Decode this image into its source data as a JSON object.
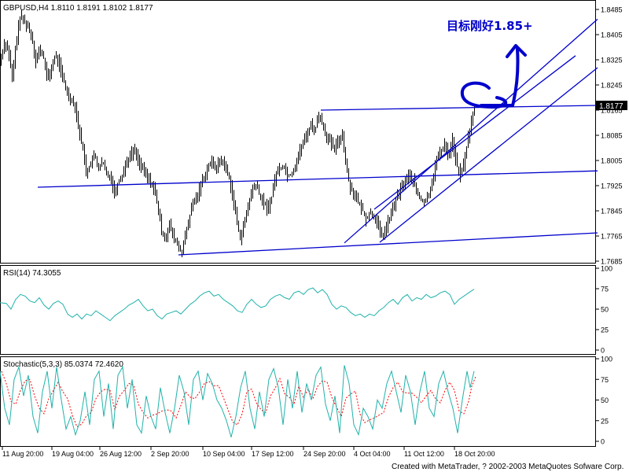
{
  "colors": {
    "background": "#ffffff",
    "frame": "#000000",
    "candles": "#000000",
    "trendlines": "#0000cc",
    "rsi_line": "#20b2aa",
    "stoch_main": "#20b2aa",
    "stoch_signal": "#ff0000",
    "annotation": "#0000cc",
    "price_label_bg": "#000000",
    "price_label_fg": "#ffffff"
  },
  "icons": [
    "hand-drawn-arrow-icon",
    "hand-drawn-circle-icon"
  ],
  "chart_data": {
    "type": "line",
    "price_panel": {
      "header": "GBPUSD,H4  1.8110 1.8191 1.8102 1.8177",
      "symbol": "GBPUSD",
      "timeframe": "H4",
      "ohlc": {
        "open": 1.811,
        "high": 1.8191,
        "low": 1.8102,
        "close": 1.8177
      },
      "current_price_label": "1.8177",
      "ylim": [
        1.7685,
        1.8485
      ],
      "y_ticks": [
        "1.8485",
        "1.8405",
        "1.8325",
        "1.8245",
        "1.8165",
        "1.8085",
        "1.8005",
        "1.7925",
        "1.7845",
        "1.7765",
        "1.7685"
      ],
      "annotation": "目标刚好1.85+",
      "close_path": [
        [
          0,
          1.832
        ],
        [
          5,
          1.838
        ],
        [
          10,
          1.836
        ],
        [
          15,
          1.826
        ],
        [
          20,
          1.838
        ],
        [
          25,
          1.846
        ],
        [
          30,
          1.845
        ],
        [
          35,
          1.843
        ],
        [
          40,
          1.84
        ],
        [
          45,
          1.832
        ],
        [
          50,
          1.836
        ],
        [
          55,
          1.833
        ],
        [
          60,
          1.826
        ],
        [
          65,
          1.83
        ],
        [
          70,
          1.834
        ],
        [
          75,
          1.831
        ],
        [
          80,
          1.826
        ],
        [
          85,
          1.822
        ],
        [
          90,
          1.82
        ],
        [
          95,
          1.818
        ],
        [
          100,
          1.81
        ],
        [
          105,
          1.804
        ],
        [
          110,
          1.796
        ],
        [
          115,
          1.8
        ],
        [
          120,
          1.802
        ],
        [
          125,
          1.798
        ],
        [
          130,
          1.8
        ],
        [
          135,
          1.796
        ],
        [
          140,
          1.796
        ],
        [
          145,
          1.79
        ],
        [
          150,
          1.794
        ],
        [
          155,
          1.796
        ],
        [
          160,
          1.8
        ],
        [
          165,
          1.802
        ],
        [
          170,
          1.804
        ],
        [
          175,
          1.801
        ],
        [
          180,
          1.798
        ],
        [
          185,
          1.796
        ],
        [
          190,
          1.794
        ],
        [
          195,
          1.792
        ],
        [
          200,
          1.786
        ],
        [
          205,
          1.778
        ],
        [
          210,
          1.776
        ],
        [
          215,
          1.78
        ],
        [
          220,
          1.776
        ],
        [
          225,
          1.774
        ],
        [
          230,
          1.771
        ],
        [
          235,
          1.776
        ],
        [
          240,
          1.782
        ],
        [
          245,
          1.787
        ],
        [
          250,
          1.789
        ],
        [
          255,
          1.793
        ],
        [
          260,
          1.796
        ],
        [
          265,
          1.799
        ],
        [
          270,
          1.8
        ],
        [
          275,
          1.798
        ],
        [
          280,
          1.801
        ],
        [
          285,
          1.799
        ],
        [
          290,
          1.796
        ],
        [
          295,
          1.79
        ],
        [
          300,
          1.782
        ],
        [
          305,
          1.776
        ],
        [
          310,
          1.78
        ],
        [
          315,
          1.786
        ],
        [
          320,
          1.791
        ],
        [
          325,
          1.793
        ],
        [
          330,
          1.789
        ],
        [
          335,
          1.787
        ],
        [
          340,
          1.785
        ],
        [
          345,
          1.789
        ],
        [
          350,
          1.796
        ],
        [
          355,
          1.798
        ],
        [
          360,
          1.799
        ],
        [
          365,
          1.796
        ],
        [
          370,
          1.796
        ],
        [
          375,
          1.799
        ],
        [
          380,
          1.803
        ],
        [
          385,
          1.806
        ],
        [
          390,
          1.809
        ],
        [
          395,
          1.812
        ],
        [
          400,
          1.81
        ],
        [
          405,
          1.815
        ],
        [
          410,
          1.812
        ],
        [
          415,
          1.808
        ],
        [
          420,
          1.806
        ],
        [
          425,
          1.804
        ],
        [
          430,
          1.807
        ],
        [
          435,
          1.809
        ],
        [
          440,
          1.798
        ],
        [
          445,
          1.792
        ],
        [
          450,
          1.79
        ],
        [
          455,
          1.787
        ],
        [
          460,
          1.785
        ],
        [
          465,
          1.782
        ],
        [
          470,
          1.784
        ],
        [
          475,
          1.783
        ],
        [
          480,
          1.78
        ],
        [
          485,
          1.776
        ],
        [
          490,
          1.779
        ],
        [
          495,
          1.782
        ],
        [
          500,
          1.786
        ],
        [
          505,
          1.789
        ],
        [
          510,
          1.792
        ],
        [
          515,
          1.794
        ],
        [
          520,
          1.796
        ],
        [
          525,
          1.794
        ],
        [
          530,
          1.79
        ],
        [
          535,
          1.788
        ],
        [
          540,
          1.787
        ],
        [
          545,
          1.79
        ],
        [
          550,
          1.795
        ],
        [
          555,
          1.801
        ],
        [
          560,
          1.803
        ],
        [
          565,
          1.806
        ],
        [
          570,
          1.802
        ],
        [
          575,
          1.807
        ],
        [
          580,
          1.799
        ],
        [
          585,
          1.796
        ],
        [
          590,
          1.8
        ],
        [
          595,
          1.808
        ],
        [
          600,
          1.814
        ],
        [
          604,
          1.8177
        ]
      ],
      "trendlines": [
        {
          "from": [
            48,
            1.792
          ],
          "to": [
            760,
            1.7972
          ]
        },
        {
          "from": [
            227,
            1.7705
          ],
          "to": [
            760,
            1.7775
          ]
        },
        {
          "from": [
            408,
            1.8165
          ],
          "to": [
            760,
            1.818
          ]
        },
        {
          "from": [
            438,
            1.7743
          ],
          "to": [
            760,
            1.8454
          ]
        },
        {
          "from": [
            476,
            1.785
          ],
          "to": [
            732,
            1.8338
          ]
        },
        {
          "from": [
            483,
            1.7745
          ],
          "to": [
            760,
            1.83
          ]
        }
      ]
    },
    "rsi_panel": {
      "header": "RSI(14)  74.3055",
      "period": 14,
      "value": 74.3055,
      "ylim": [
        0,
        100
      ],
      "y_ticks": [
        "100",
        "75",
        "50",
        "25",
        "0"
      ],
      "path": [
        [
          0,
          58
        ],
        [
          8,
          57
        ],
        [
          14,
          50
        ],
        [
          20,
          62
        ],
        [
          26,
          68
        ],
        [
          32,
          66
        ],
        [
          38,
          60
        ],
        [
          44,
          58
        ],
        [
          50,
          64
        ],
        [
          56,
          55
        ],
        [
          62,
          50
        ],
        [
          68,
          57
        ],
        [
          74,
          60
        ],
        [
          80,
          56
        ],
        [
          86,
          44
        ],
        [
          92,
          40
        ],
        [
          98,
          44
        ],
        [
          104,
          38
        ],
        [
          110,
          44
        ],
        [
          116,
          42
        ],
        [
          122,
          48
        ],
        [
          128,
          44
        ],
        [
          134,
          40
        ],
        [
          140,
          36
        ],
        [
          146,
          42
        ],
        [
          152,
          46
        ],
        [
          158,
          50
        ],
        [
          164,
          55
        ],
        [
          170,
          58
        ],
        [
          176,
          62
        ],
        [
          182,
          54
        ],
        [
          188,
          48
        ],
        [
          194,
          50
        ],
        [
          200,
          42
        ],
        [
          206,
          38
        ],
        [
          212,
          44
        ],
        [
          218,
          46
        ],
        [
          224,
          48
        ],
        [
          230,
          44
        ],
        [
          236,
          50
        ],
        [
          242,
          56
        ],
        [
          248,
          60
        ],
        [
          254,
          66
        ],
        [
          260,
          70
        ],
        [
          266,
          72
        ],
        [
          272,
          66
        ],
        [
          278,
          68
        ],
        [
          284,
          62
        ],
        [
          290,
          58
        ],
        [
          296,
          54
        ],
        [
          302,
          48
        ],
        [
          308,
          46
        ],
        [
          314,
          56
        ],
        [
          320,
          62
        ],
        [
          326,
          56
        ],
        [
          332,
          52
        ],
        [
          338,
          54
        ],
        [
          344,
          62
        ],
        [
          350,
          66
        ],
        [
          356,
          68
        ],
        [
          362,
          64
        ],
        [
          368,
          62
        ],
        [
          374,
          70
        ],
        [
          380,
          72
        ],
        [
          386,
          68
        ],
        [
          392,
          74
        ],
        [
          398,
          76
        ],
        [
          404,
          70
        ],
        [
          410,
          74
        ],
        [
          416,
          68
        ],
        [
          422,
          56
        ],
        [
          428,
          50
        ],
        [
          434,
          54
        ],
        [
          440,
          52
        ],
        [
          446,
          46
        ],
        [
          452,
          42
        ],
        [
          458,
          44
        ],
        [
          464,
          40
        ],
        [
          470,
          44
        ],
        [
          476,
          42
        ],
        [
          482,
          48
        ],
        [
          488,
          52
        ],
        [
          494,
          58
        ],
        [
          500,
          62
        ],
        [
          506,
          56
        ],
        [
          512,
          64
        ],
        [
          518,
          68
        ],
        [
          524,
          60
        ],
        [
          530,
          64
        ],
        [
          536,
          62
        ],
        [
          542,
          68
        ],
        [
          548,
          64
        ],
        [
          554,
          66
        ],
        [
          560,
          70
        ],
        [
          566,
          72
        ],
        [
          572,
          68
        ],
        [
          578,
          56
        ],
        [
          584,
          62
        ],
        [
          590,
          66
        ],
        [
          596,
          70
        ],
        [
          603,
          74.3
        ]
      ]
    },
    "stochastic_panel": {
      "header": "Stochastic(5,3,3)  85.0374  72.4620",
      "params": [
        5,
        3,
        3
      ],
      "main_value": 85.0374,
      "signal_value": 72.462,
      "ylim": [
        0,
        100
      ],
      "y_ticks": [
        "100",
        "75",
        "50",
        "25",
        "0"
      ],
      "main": [
        [
          0,
          85
        ],
        [
          6,
          40
        ],
        [
          12,
          20
        ],
        [
          18,
          75
        ],
        [
          24,
          90
        ],
        [
          30,
          55
        ],
        [
          36,
          80
        ],
        [
          42,
          30
        ],
        [
          48,
          10
        ],
        [
          54,
          60
        ],
        [
          60,
          85
        ],
        [
          66,
          40
        ],
        [
          72,
          90
        ],
        [
          78,
          50
        ],
        [
          84,
          15
        ],
        [
          90,
          30
        ],
        [
          96,
          8
        ],
        [
          102,
          25
        ],
        [
          108,
          60
        ],
        [
          114,
          20
        ],
        [
          120,
          75
        ],
        [
          126,
          85
        ],
        [
          132,
          30
        ],
        [
          138,
          70
        ],
        [
          144,
          15
        ],
        [
          150,
          80
        ],
        [
          156,
          90
        ],
        [
          162,
          40
        ],
        [
          168,
          75
        ],
        [
          174,
          20
        ],
        [
          180,
          10
        ],
        [
          186,
          55
        ],
        [
          192,
          30
        ],
        [
          198,
          15
        ],
        [
          204,
          65
        ],
        [
          210,
          35
        ],
        [
          216,
          10
        ],
        [
          222,
          40
        ],
        [
          228,
          80
        ],
        [
          234,
          60
        ],
        [
          240,
          20
        ],
        [
          246,
          75
        ],
        [
          252,
          85
        ],
        [
          258,
          50
        ],
        [
          264,
          82
        ],
        [
          270,
          70
        ],
        [
          276,
          50
        ],
        [
          282,
          40
        ],
        [
          288,
          25
        ],
        [
          294,
          5
        ],
        [
          300,
          30
        ],
        [
          306,
          65
        ],
        [
          312,
          85
        ],
        [
          318,
          40
        ],
        [
          324,
          15
        ],
        [
          330,
          60
        ],
        [
          336,
          30
        ],
        [
          342,
          75
        ],
        [
          348,
          88
        ],
        [
          354,
          65
        ],
        [
          360,
          20
        ],
        [
          366,
          75
        ],
        [
          372,
          40
        ],
        [
          378,
          85
        ],
        [
          384,
          35
        ],
        [
          390,
          70
        ],
        [
          396,
          50
        ],
        [
          402,
          80
        ],
        [
          408,
          90
        ],
        [
          414,
          45
        ],
        [
          420,
          25
        ],
        [
          426,
          55
        ],
        [
          432,
          10
        ],
        [
          438,
          92
        ],
        [
          444,
          70
        ],
        [
          450,
          20
        ],
        [
          456,
          8
        ],
        [
          462,
          40
        ],
        [
          468,
          30
        ],
        [
          474,
          15
        ],
        [
          480,
          50
        ],
        [
          486,
          40
        ],
        [
          492,
          70
        ],
        [
          498,
          85
        ],
        [
          504,
          60
        ],
        [
          510,
          35
        ],
        [
          516,
          80
        ],
        [
          522,
          60
        ],
        [
          528,
          20
        ],
        [
          534,
          60
        ],
        [
          540,
          85
        ],
        [
          546,
          40
        ],
        [
          552,
          30
        ],
        [
          558,
          70
        ],
        [
          564,
          85
        ],
        [
          570,
          60
        ],
        [
          576,
          40
        ],
        [
          582,
          10
        ],
        [
          588,
          50
        ],
        [
          594,
          85
        ],
        [
          598,
          65
        ],
        [
          603,
          85
        ]
      ]
    },
    "x_ticks": [
      "11 Aug 20:00",
      "19 Aug 04:00",
      "26 Aug 12:00",
      "2 Sep 20:00",
      "10 Sep 04:00",
      "17 Sep 12:00",
      "24 Sep 20:00",
      "4 Oct 04:00",
      "11 Oct 12:00",
      "18 Oct 20:00"
    ],
    "legend": "none",
    "grid": false
  },
  "footer": "Created with MetaTrader, ? 2002-2003 MetaQuotes Sofware Corp."
}
